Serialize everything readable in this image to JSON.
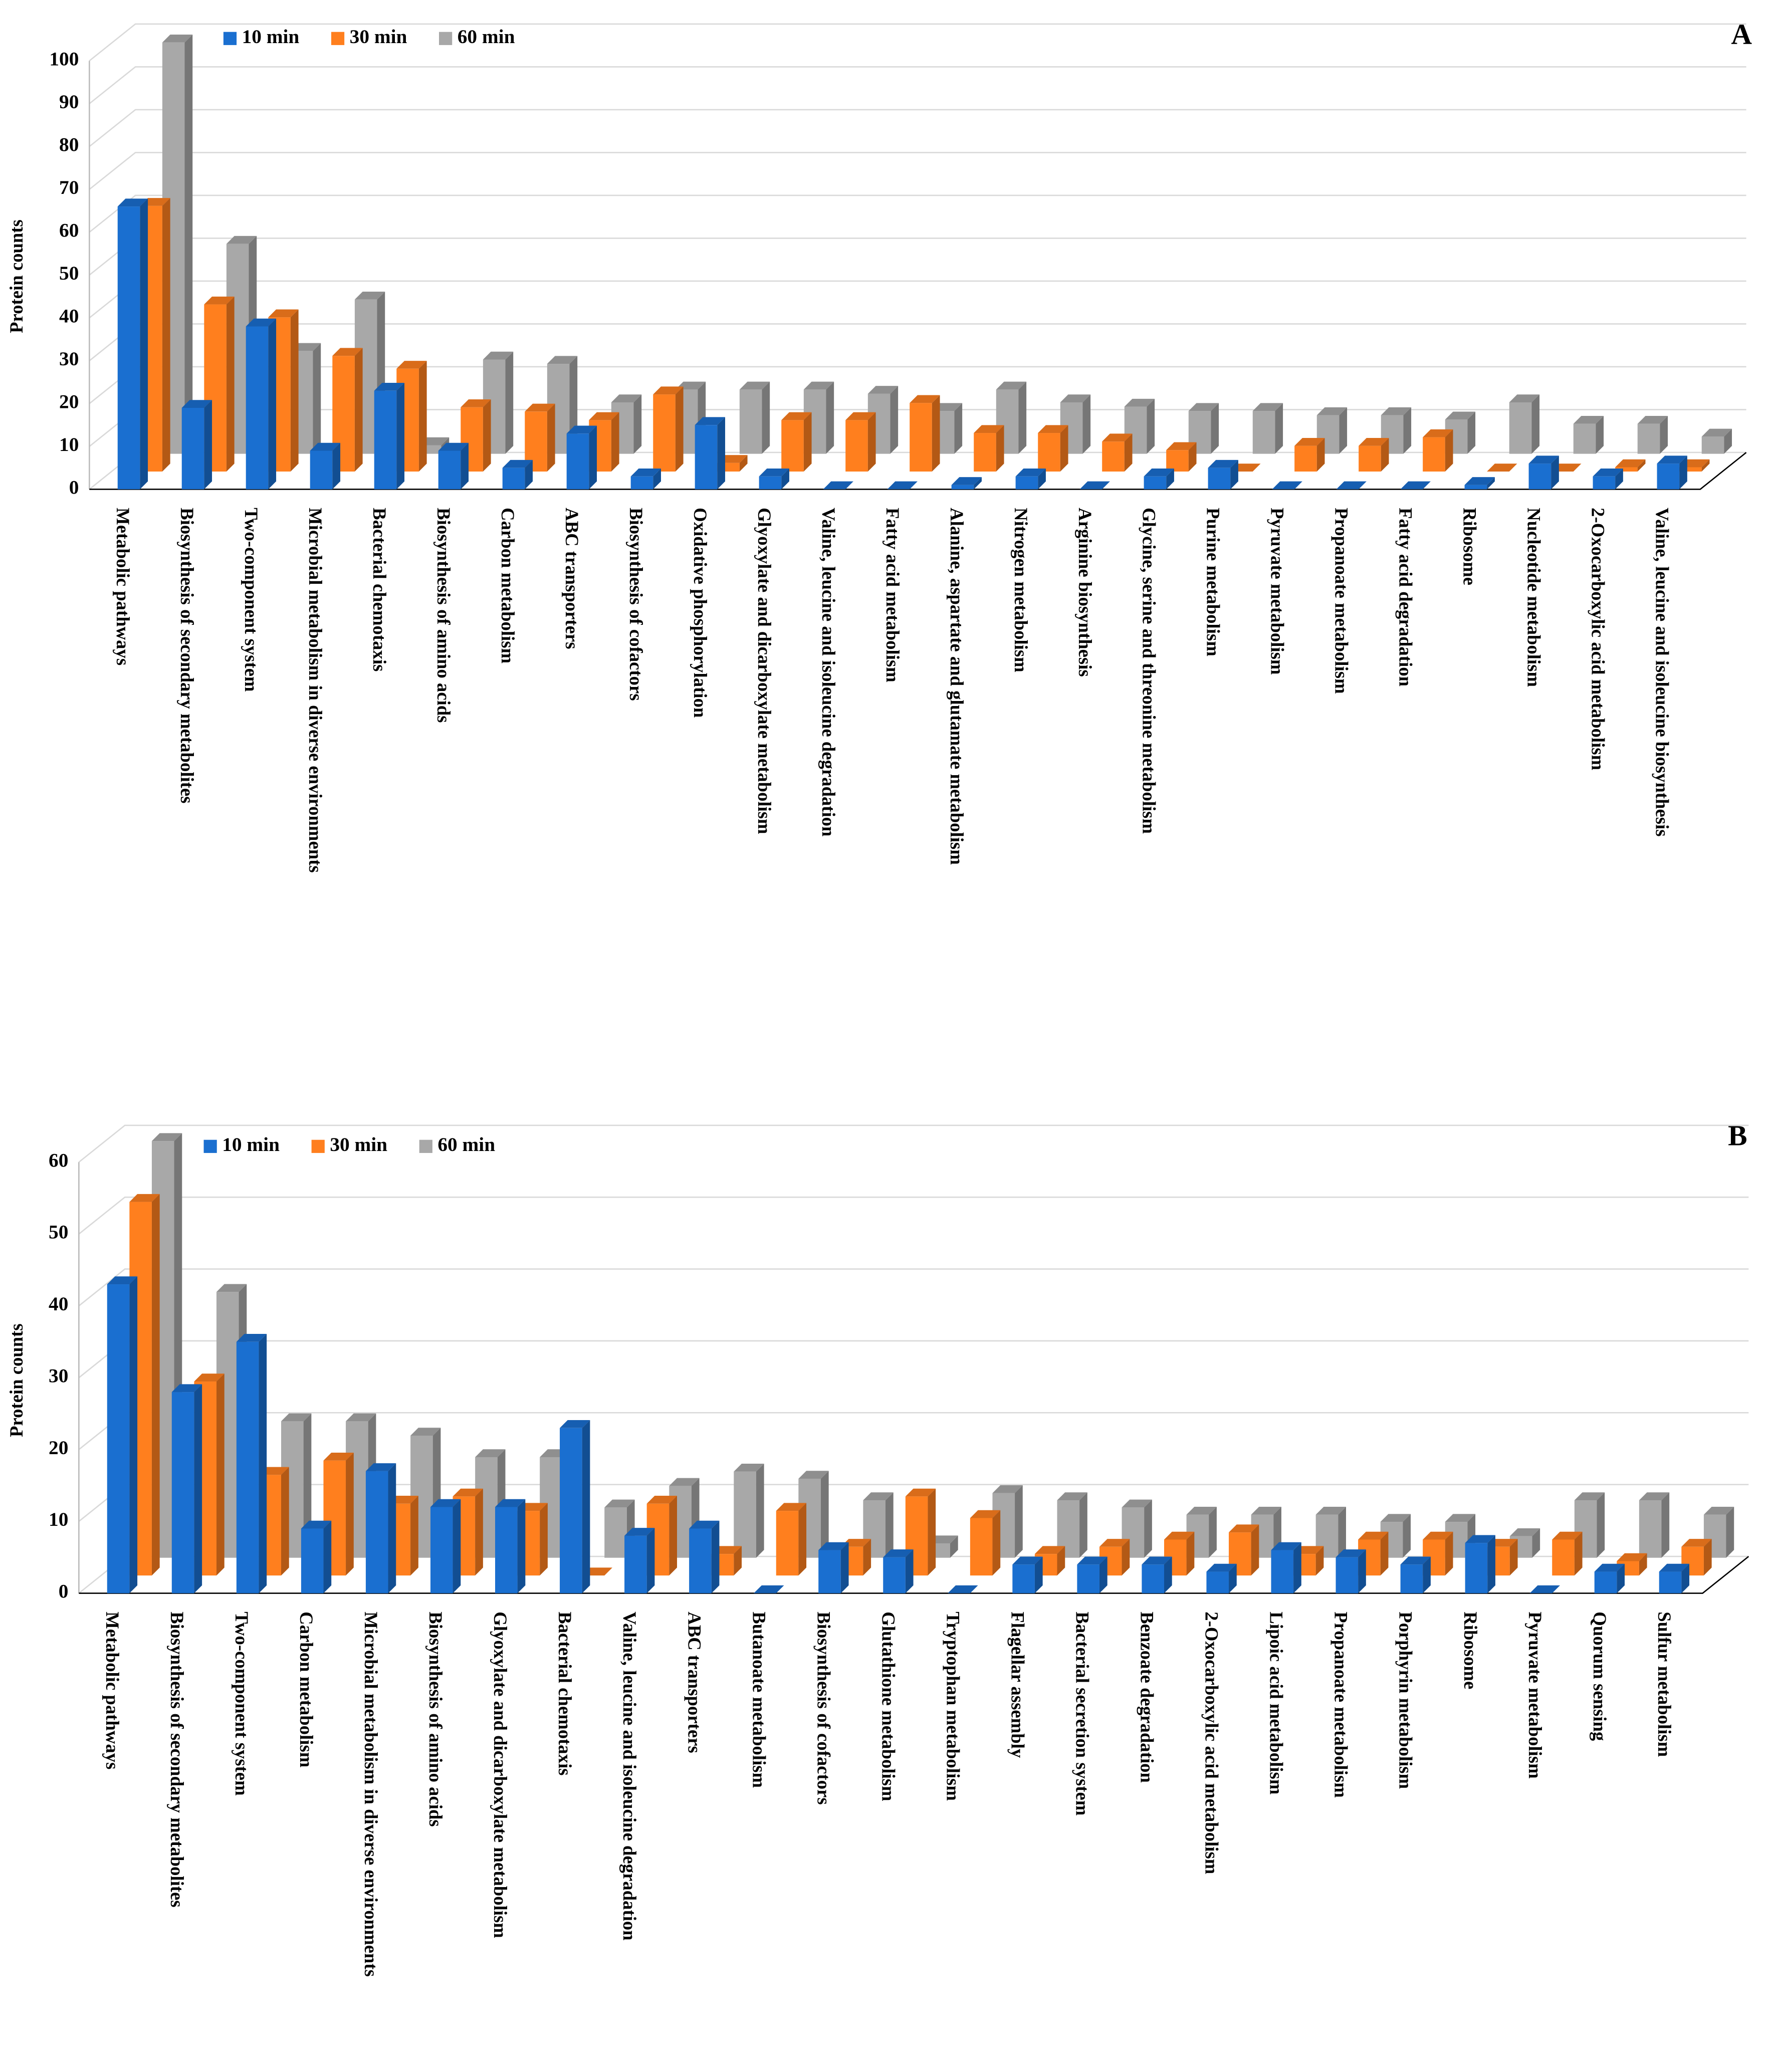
{
  "chart_data": [
    {
      "type": "bar",
      "panel": "A",
      "ylabel": "Protein counts",
      "categories": [
        "Metabolic pathways",
        "Biosynthesis of secondary metabolites",
        "Two-component  system",
        "Microbial metabolism in diverse environments",
        "Bacterial chemotaxis",
        "Biosynthesis of amino acids",
        "Carbon metabolism",
        "ABC transporters",
        "Biosynthesis of cofactors",
        "Oxidative phosphorylation",
        "Glyoxylate  and dicarboxylate metabolism",
        "Valine, leucine and isoleucine degradation",
        "Fatty acid metabolism",
        "Alanine, aspartate and glutamate metabolism",
        "Nitrogen metabolism",
        "Arginine biosynthesis",
        "Glycine, serine and threonine metabolism",
        "Purine metabolism",
        "Pyruvate metabolism",
        "Propanoate metabolism",
        "Fatty acid degradation",
        "Ribosome",
        "Nucleotide metabolism",
        "2-Oxocarboxylic acid metabolism",
        "Valine, leucine and isoleucine biosynthesis"
      ],
      "series": [
        {
          "name": "10 min",
          "color": "#1a6fd0",
          "values": [
            66,
            19,
            38,
            9,
            23,
            9,
            5,
            13,
            3,
            15,
            3,
            0,
            0,
            1,
            3,
            0,
            3,
            5,
            0,
            0,
            0,
            1,
            6,
            3,
            6
          ]
        },
        {
          "name": "30 min",
          "color": "#ff7f1e",
          "values": [
            62,
            39,
            36,
            27,
            24,
            15,
            14,
            12,
            18,
            2,
            12,
            12,
            16,
            9,
            9,
            7,
            5,
            0,
            6,
            6,
            8,
            0,
            0,
            1,
            1
          ]
        },
        {
          "name": "60 min",
          "color": "#a8a8a8",
          "values": [
            96,
            49,
            24,
            36,
            2,
            22,
            21,
            12,
            15,
            15,
            15,
            14,
            10,
            15,
            12,
            11,
            10,
            10,
            9,
            9,
            8,
            12,
            7,
            7,
            4
          ]
        }
      ],
      "ylim": [
        0,
        100
      ],
      "yticks": [
        0,
        10,
        20,
        30,
        40,
        50,
        60,
        70,
        80,
        90,
        100
      ],
      "grid": true
    },
    {
      "type": "bar",
      "panel": "B",
      "ylabel": "Protein counts",
      "categories": [
        "Metabolic pathways",
        "Biosynthesis of secondary metabolites",
        "Two-component  system",
        "Carbon metabolism",
        "Microbial metabolism in diverse environments",
        "Biosynthesis of amino acids",
        "Glyoxylate  and dicarboxylate metabolism",
        "Bacterial chemotaxis",
        "Valine, leucine and isoleucine degradation",
        "ABC transporters",
        "Butanoate metabolism",
        "Biosynthesis of cofactors",
        "Glutathione metabolism",
        "Tryptophan metabolism",
        "Flagellar assembly",
        "Bacterial secretion system",
        "Benzoate degradation",
        "2-Oxocarboxylic acid metabolism",
        "Lipoic acid metabolism",
        "Propanoate metabolism",
        "Porphyrin metabolism",
        "Ribosome",
        "Pyruvate metabolism",
        "Quorum sensing",
        "Sulfur metabolism"
      ],
      "series": [
        {
          "name": "10 min",
          "color": "#1a6fd0",
          "values": [
            43,
            28,
            35,
            9,
            17,
            12,
            12,
            23,
            8,
            9,
            0,
            6,
            5,
            0,
            4,
            4,
            4,
            3,
            6,
            5,
            4,
            7,
            0,
            3,
            3
          ]
        },
        {
          "name": "30 min",
          "color": "#ff7f1e",
          "values": [
            52,
            27,
            14,
            16,
            10,
            11,
            9,
            0,
            10,
            3,
            9,
            4,
            11,
            8,
            3,
            4,
            5,
            6,
            3,
            5,
            5,
            4,
            5,
            2,
            4
          ]
        },
        {
          "name": "60 min",
          "color": "#a8a8a8",
          "values": [
            58,
            37,
            19,
            19,
            17,
            14,
            14,
            7,
            10,
            12,
            11,
            8,
            2,
            9,
            8,
            7,
            6,
            6,
            6,
            5,
            5,
            3,
            8,
            8,
            6
          ]
        }
      ],
      "ylim": [
        0,
        60
      ],
      "yticks": [
        0,
        10,
        20,
        30,
        40,
        50,
        60
      ],
      "grid": true
    }
  ]
}
